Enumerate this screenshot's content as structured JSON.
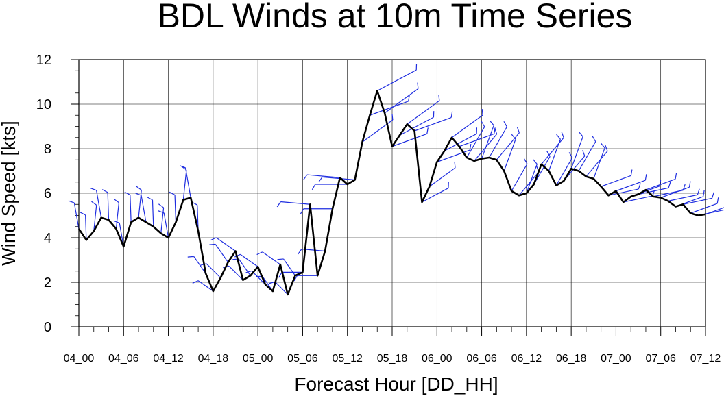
{
  "chart_data": {
    "type": "line",
    "title": "BDL Winds at 10m Time Series",
    "xlabel": "Forecast Hour [DD_HH]",
    "ylabel": "Wind Speed [kts]",
    "ylim": [
      0,
      12
    ],
    "yticks": [
      0,
      2,
      4,
      6,
      8,
      10,
      12
    ],
    "xlim": [
      0,
      84
    ],
    "xtick_labels": [
      "04_00",
      "04_06",
      "04_12",
      "04_18",
      "05_00",
      "05_06",
      "05_12",
      "05_18",
      "06_00",
      "06_06",
      "06_12",
      "06_18",
      "07_00",
      "07_06",
      "07_12"
    ],
    "grid": true,
    "series": [
      {
        "color": "#000000",
        "x": [
          0,
          1,
          2,
          3,
          4,
          5,
          6,
          7,
          8,
          9,
          10,
          11,
          12,
          13,
          14,
          15,
          16,
          17,
          18,
          19,
          20,
          21,
          22,
          23,
          24,
          25,
          26,
          27,
          28,
          29,
          30,
          31,
          32,
          33,
          34,
          35,
          36,
          37,
          38,
          39,
          40,
          41,
          42,
          43,
          44,
          45,
          46,
          47,
          48,
          49,
          50,
          51,
          52,
          53,
          54,
          55,
          56,
          57,
          58,
          59,
          60,
          61,
          62,
          63,
          64,
          65,
          66,
          67,
          68,
          69,
          70,
          71,
          72,
          73,
          74,
          75,
          76,
          77,
          78,
          79,
          80,
          81,
          82,
          83,
          84
        ],
        "values": [
          4.4,
          3.9,
          4.3,
          4.9,
          4.8,
          4.4,
          3.6,
          4.7,
          4.9,
          4.7,
          4.5,
          4.2,
          4.0,
          4.7,
          5.7,
          5.8,
          4.3,
          2.4,
          1.6,
          2.2,
          2.9,
          3.4,
          2.1,
          2.3,
          2.7,
          1.9,
          1.6,
          2.8,
          1.45,
          2.3,
          2.45,
          5.5,
          2.3,
          3.4,
          5.3,
          6.7,
          6.4,
          6.6,
          8.3,
          9.5,
          10.6,
          9.6,
          8.1,
          8.6,
          9.1,
          8.8,
          5.6,
          6.3,
          7.4,
          7.9,
          8.5,
          8.1,
          7.6,
          7.45,
          7.55,
          7.6,
          7.5,
          7.0,
          6.1,
          5.9,
          6.0,
          6.4,
          7.3,
          7.0,
          6.35,
          6.55,
          7.1,
          7.0,
          6.75,
          6.65,
          6.3,
          5.9,
          6.1,
          5.6,
          5.85,
          5.95,
          6.15,
          5.85,
          5.8,
          5.65,
          5.4,
          5.5,
          5.1,
          5.0,
          5.05
        ]
      }
    ],
    "wind_barbs": {
      "color": "#1f2ee0",
      "every": 1
    }
  }
}
